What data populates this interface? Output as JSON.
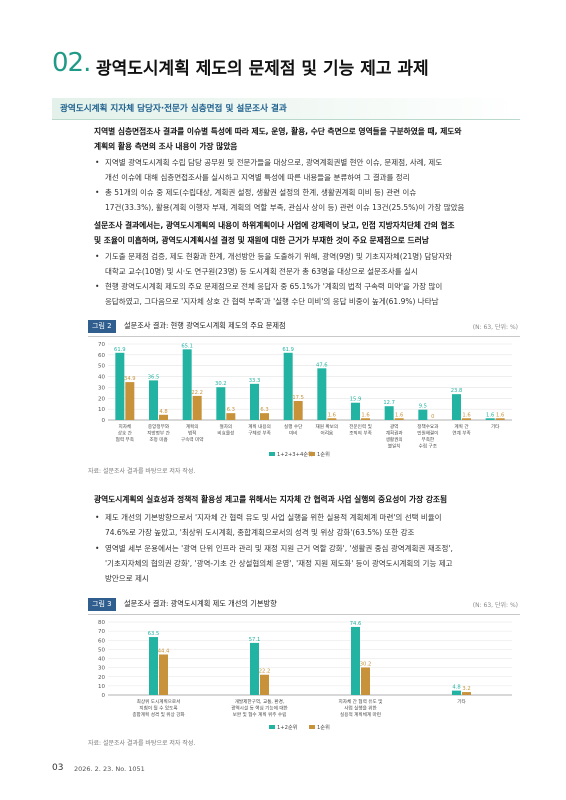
{
  "header": {
    "number": "02.",
    "title": "광역도시계획 제도의 문제점 및 기능 제고 과제"
  },
  "section": {
    "title": "광역도시계획 지자체 담당자·전문가 심층면접 및 설문조사 결과"
  },
  "intro": {
    "lines": [
      "지역별 심층면접조사 결과를 이슈별 특성에 따라 제도, 운영, 활용, 수단 측면으로 영역들을 구분하였을 때, 제도와",
      "계획의 활용 측면의 조사 내용이 가장 많았음"
    ],
    "bullets": [
      [
        "지역별 광역도시계획 수립 담당 공무원 및 전문가들을 대상으로, 광역계획권별 현안 이슈, 문제점, 사례, 제도",
        "개선 이슈에 대해 심층면접조사를 실시하고 지역별 특성에 따른 내용들을 분류하여 그 결과를 정리"
      ],
      [
        "총 51개의 이슈 중 제도(수립대상, 계획권 설정, 생활권 설정의 한계, 생활권계획 미비 등) 관련 이슈",
        "17건(33.3%), 활용(계획 이행자 부재, 계획의 역할 부족, 관심사 상이 등) 관련 이슈 13건(25.5%)이 가장 많았음"
      ]
    ]
  },
  "survey": {
    "lines": [
      "설문조사 결과에서는, 광역도시계획의 내용이 하위계획이나 사업에 강제력이 낮고, 인접 지방자치단체 간의 협조",
      "및 조율이 미흡하며, 광역도시계획시설 결정 및 재원에 대한 근거가 부재한 것이 주요 문제점으로 드러남"
    ],
    "bullets": [
      [
        "기도출 문제점 검증, 제도 현황과 한계, 개선방안 등을 도출하기 위해, 광역(9명) 및 기초지자체(21명) 담당자와",
        "대학교 교수(10명) 및 시·도 연구원(23명) 등 도시계획 전문가 총 63명을 대상으로 설문조사를 실시"
      ],
      [
        "현행 광역도시계획 제도의 주요 문제점으로 전체 응답자 중 65.1%가 '계획의 법적 구속력 미약'을 가장 많이",
        "응답하였고, 그다음으로 '지자체 상호 간 협력 부족'과 '실행 수단 미비'의 응답 비중이 높게(61.9%) 나타남"
      ]
    ]
  },
  "figure2": {
    "tag": "그림 2",
    "title": "설문조사 결과: 현행 광역도시계획 제도의 주요 문제점",
    "unit": "(N: 63, 단위: %)",
    "source": "자료: 설문조사 결과를 바탕으로 저자 작성."
  },
  "policy": {
    "lines": [
      "광역도시계획의 실효성과 정책적 활용성 제고를 위해서는 지자체 간 협력과 사업 실행의 중요성이 가장 강조됨"
    ],
    "bullets": [
      [
        "제도 개선의 기본방향으로서 '지자체 간 협력 유도 및 사업 실행을 위한 실용적 계획체계 마련'의 선택 비율이",
        "74.6%로 가장 높았고, '최상위 도시계획, 종합계획으로서의 성격 및 위상 강화'(63.5%) 또한 강조"
      ],
      [
        "영역별 세부 운용에서는 '광역 단위 인프라 관리 및 재정 지원 근거 역할 강화', '생활권 중심 광역계획권 재조정',",
        "'기초지자체의 협의권 강화', '광역-기초 간 상설협의체 운영', '재정 지원 제도화' 등이 광역도시계획의 기능 제고",
        "방안으로 제시"
      ]
    ]
  },
  "figure3": {
    "tag": "그림 3",
    "title": "설문조사 결과: 광역도시계획 제도 개선의 기본방향",
    "unit": "(N: 63, 단위: %)",
    "source": "자료: 설문조사 결과를 바탕으로 저자 작성."
  },
  "footer": {
    "page": "03",
    "issue": "2026. 2. 23.   No. 1051"
  },
  "colors": {
    "accent": "#1f9a86",
    "series_primary": "#22b3a3",
    "series_secondary": "#c8923a",
    "figure_tag": "#2f5e8f"
  },
  "chart_data": [
    {
      "type": "bar",
      "title": "",
      "ylim": [
        0,
        70
      ],
      "yticks": [
        0,
        10,
        20,
        30,
        40,
        50,
        60,
        70
      ],
      "grid": true,
      "legend_position": "bottom-center",
      "categories": [
        [
          "지자체",
          "상호 간",
          "협력 부족"
        ],
        [
          "중앙정부와",
          "지방정부 간",
          "조정 미흡"
        ],
        [
          "계획의",
          "법적",
          "구속력 미약"
        ],
        [
          "절차의",
          "비효율성"
        ],
        [
          "계획 내용의",
          "구체성 부족"
        ],
        [
          "실행 수단",
          "미비"
        ],
        [
          "재원 확보의",
          "어려움"
        ],
        [
          "전문인력 및",
          "조직의 부족"
        ],
        [
          "광역",
          "계획권과",
          "생활권의",
          "불일치"
        ],
        [
          "정책수요과",
          "민원해결이",
          "부족한",
          "수립 구조"
        ],
        [
          "계획 간",
          "연계 부족"
        ],
        [
          "기타"
        ]
      ],
      "series": [
        {
          "name": "1+2+3+4순위",
          "values": [
            61.9,
            36.5,
            65.1,
            30.2,
            33.3,
            61.9,
            47.6,
            15.9,
            12.7,
            9.5,
            23.8,
            1.6
          ]
        },
        {
          "name": "1순위",
          "values": [
            34.9,
            4.8,
            22.2,
            6.3,
            6.3,
            17.5,
            1.6,
            1.6,
            1.6,
            0,
            1.6,
            1.6
          ]
        }
      ]
    },
    {
      "type": "bar",
      "title": "",
      "ylim": [
        0,
        80
      ],
      "yticks": [
        0,
        10,
        20,
        30,
        40,
        50,
        60,
        70,
        80
      ],
      "grid": true,
      "legend_position": "bottom-center",
      "categories": [
        [
          "최상위 도시계획으로서",
          "지침이 될 수 있도록",
          "종합계획 성격 및 위상 강화"
        ],
        [
          "개발제한구역, 교통, 환경,",
          "광역시설 등 핵심 기능에 대한",
          "보완 및 협수 계획 위주 수립"
        ],
        [
          "지자체 간 협력 유도 및",
          "사업 실행을 위한",
          "실용적 계획체계 마련"
        ],
        [
          "기타"
        ]
      ],
      "series": [
        {
          "name": "1+2순위",
          "values": [
            63.5,
            57.1,
            74.6,
            4.8
          ]
        },
        {
          "name": "1순위",
          "values": [
            44.4,
            22.2,
            30.2,
            3.2
          ]
        }
      ]
    }
  ]
}
